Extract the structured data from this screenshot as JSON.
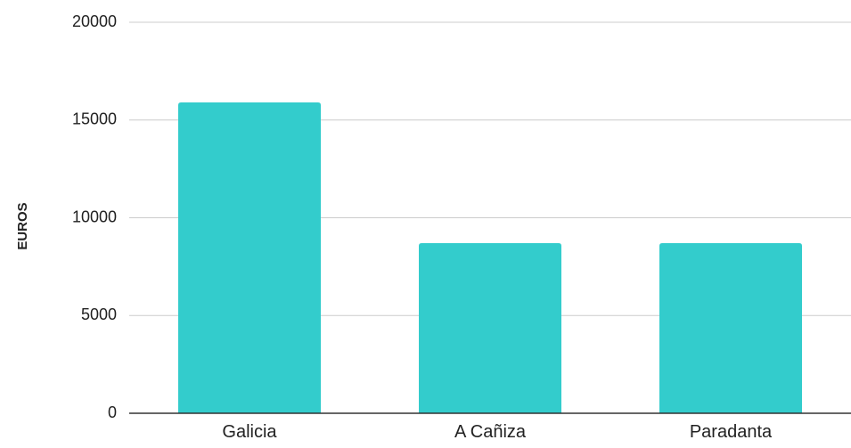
{
  "chart_data": {
    "type": "bar",
    "categories": [
      "Galicia",
      "A Cañiza",
      "Paradanta"
    ],
    "values": [
      15900,
      8700,
      8700
    ],
    "ylabel": "EUROS",
    "xlabel": "",
    "ylim": [
      0,
      20000
    ],
    "yticks": [
      0,
      5000,
      10000,
      15000,
      20000
    ],
    "grid": true,
    "legend": "none",
    "bar_color": "#33cccc"
  }
}
